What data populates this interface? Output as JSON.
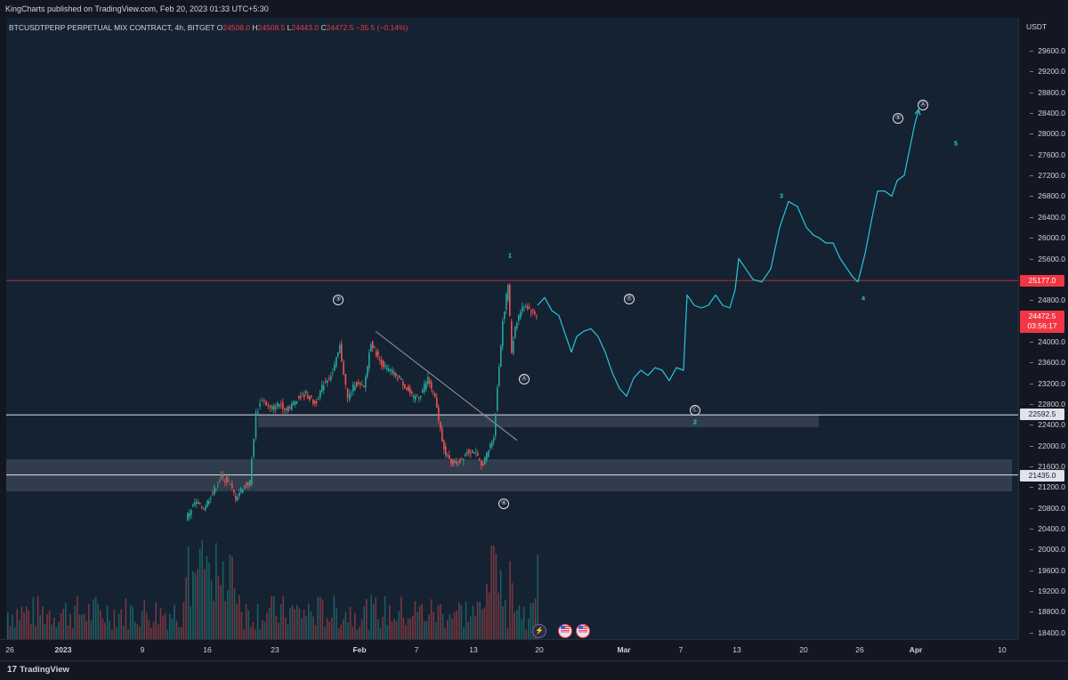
{
  "header": {
    "publisher_text": "KingCharts published on TradingView.com, Feb 20, 2023 01:33 UTC+5:30"
  },
  "legend": {
    "symbol": "BTCUSDTPERP PERPETUAL MIX CONTRACT, 4h, BITGET",
    "o_label": "O",
    "o_value": "24508.0",
    "h_label": "H",
    "h_value": "24508.5",
    "l_label": "L",
    "l_value": "24443.0",
    "c_label": "C",
    "c_value": "24472.5",
    "change": "−35.5 (−0.14%)"
  },
  "price_axis": {
    "unit": "USDT",
    "ticks": [
      "29600.0",
      "29200.0",
      "28800.0",
      "28400.0",
      "28000.0",
      "27600.0",
      "27200.0",
      "26800.0",
      "26400.0",
      "26000.0",
      "25600.0",
      "24800.0",
      "24000.0",
      "23600.0",
      "23200.0",
      "22800.0",
      "22400.0",
      "22000.0",
      "21600.0",
      "21200.0",
      "20800.0",
      "20400.0",
      "20000.0",
      "19600.0",
      "19200.0",
      "18800.0",
      "18400.0"
    ],
    "level_red": "25177.0",
    "current_price": "24472.5",
    "countdown": "03:56:17",
    "level_white1": "22592.5",
    "level_white2": "21435.0"
  },
  "time_axis": {
    "ticks": [
      "26",
      "2023",
      "9",
      "16",
      "23",
      "Feb",
      "7",
      "13",
      "20",
      "Mar",
      "7",
      "13",
      "20",
      "26",
      "Apr",
      "10"
    ]
  },
  "annotations": {
    "wave_3_circled": "③",
    "wave_4_circled": "④",
    "wave_5_circled": "⑤",
    "wave_A_circled": "Ⓐ",
    "wave_B_circled": "Ⓑ",
    "wave_C_circled": "Ⓒ",
    "wave_A_top": "Ⓐ",
    "n1": "1",
    "n2": "2",
    "n3": "3",
    "n4": "4",
    "n5": "5"
  },
  "footer": {
    "logo_mark": "17",
    "brand": "TradingView"
  },
  "icons": {
    "lightning": "lightning-icon",
    "flag_us_1": "us-flag-icon",
    "flag_us_2": "us-flag-icon"
  },
  "colors": {
    "up": "#26a69a",
    "down": "#ef5350",
    "projection": "#26c6da",
    "level_red": "#f23645",
    "background": "#152232"
  }
}
